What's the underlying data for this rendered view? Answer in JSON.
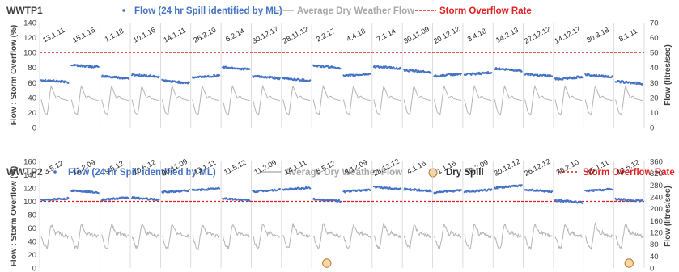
{
  "colors": {
    "flow": "#4472c4",
    "dwf": "#b4b4b4",
    "overflow": "#e02020",
    "spill_fill": "#f8d7a2",
    "spill_stroke": "#b07a30",
    "divider": "#d6d6d6",
    "text": "#404040"
  },
  "chart_data": [
    {
      "type": "scatter",
      "title": "WWTP1",
      "legend": {
        "flow": "Flow (24 hr Spill identified by ML)",
        "dwf": "Average Dry Weather Flow",
        "overflow": "Storm Overflow Rate"
      },
      "ylabel_left": "Flow : Storm Overflow (%)",
      "ylabel_right": "Flow (litres/sec)",
      "yticks_left": [
        "0",
        "20",
        "40",
        "60",
        "80",
        "100",
        "120",
        "140"
      ],
      "yticks_right": [
        "0",
        "10",
        "20",
        "30",
        "40",
        "50",
        "60",
        "70"
      ],
      "ylim_left": [
        0,
        140
      ],
      "ylim_right": [
        0,
        70
      ],
      "storm_overflow_rate": 100,
      "dates": [
        "13.1.11",
        "15.1.15",
        "1.1.18",
        "10.1.16",
        "14.1.11",
        "26.3.10",
        "6.2.14",
        "30.12.17",
        "28.11.12",
        "2.2.17",
        "4.4.18",
        "7.1.14",
        "30.11.09",
        "20.12.12",
        "3.4.18",
        "14.2.13",
        "27.12.12",
        "14.12.17",
        "30.3.18",
        "8.1.11"
      ],
      "flow_levels": [
        62,
        82,
        67,
        69,
        61,
        68,
        79,
        67,
        64,
        81,
        70,
        80,
        75,
        70,
        72,
        77,
        70,
        66,
        69,
        60
      ],
      "flow_trend": [
        -1,
        -1,
        -1,
        -1,
        -1,
        1,
        -1,
        -1,
        -1,
        -1,
        1,
        -1,
        -1,
        1,
        1,
        -1,
        -1,
        1,
        -1,
        -1
      ],
      "dwf_range_litres_sec": [
        7,
        28
      ]
    },
    {
      "type": "scatter",
      "title": "WWTP2",
      "legend": {
        "flow": "Flow (24 hr Spill identified by ML)",
        "dwf": "Average Dry Weather Flow",
        "spill": "Dry Spill",
        "overflow": "Storm Overflow Rate"
      },
      "ylabel_left": "Flow : Storm Overflow (%)",
      "ylabel_right": "Flow (litres/sec)",
      "yticks_left": [
        "0",
        "20",
        "40",
        "60",
        "80",
        "100",
        "120",
        "140",
        "160"
      ],
      "yticks_right": [
        "0",
        "40",
        "80",
        "120",
        "160",
        "200",
        "240",
        "280",
        "320",
        "360"
      ],
      "ylim_left": [
        0,
        160
      ],
      "ylim_right": [
        0,
        360
      ],
      "storm_overflow_rate": 100,
      "dates": [
        "3.5.12",
        "12.2.09",
        "9.5.12",
        "10.5.12",
        "30.11.09",
        "13.1.11",
        "11.5.12",
        "11.2.09",
        "14.1.11",
        "5.5.12",
        "8.12.09",
        "28.12.12",
        "4.1.16",
        "1.1.16",
        "10.2.09",
        "30.12.12",
        "26.12.12",
        "28.2.10",
        "15.1.11",
        "12.5.12"
      ],
      "flow_levels": [
        103,
        115,
        104,
        104,
        115,
        118,
        103,
        116,
        119,
        102,
        116,
        120,
        117,
        115,
        116,
        122,
        116,
        100,
        117,
        102
      ],
      "flow_trend": [
        1,
        -1,
        1,
        -1,
        1,
        1,
        -1,
        1,
        1,
        -1,
        1,
        -1,
        -1,
        1,
        1,
        1,
        -1,
        -1,
        1,
        -1
      ],
      "dry_spill_days": [
        "5.5.12",
        "12.5.12"
      ],
      "dwf_range_litres_sec": [
        60,
        150
      ]
    }
  ]
}
